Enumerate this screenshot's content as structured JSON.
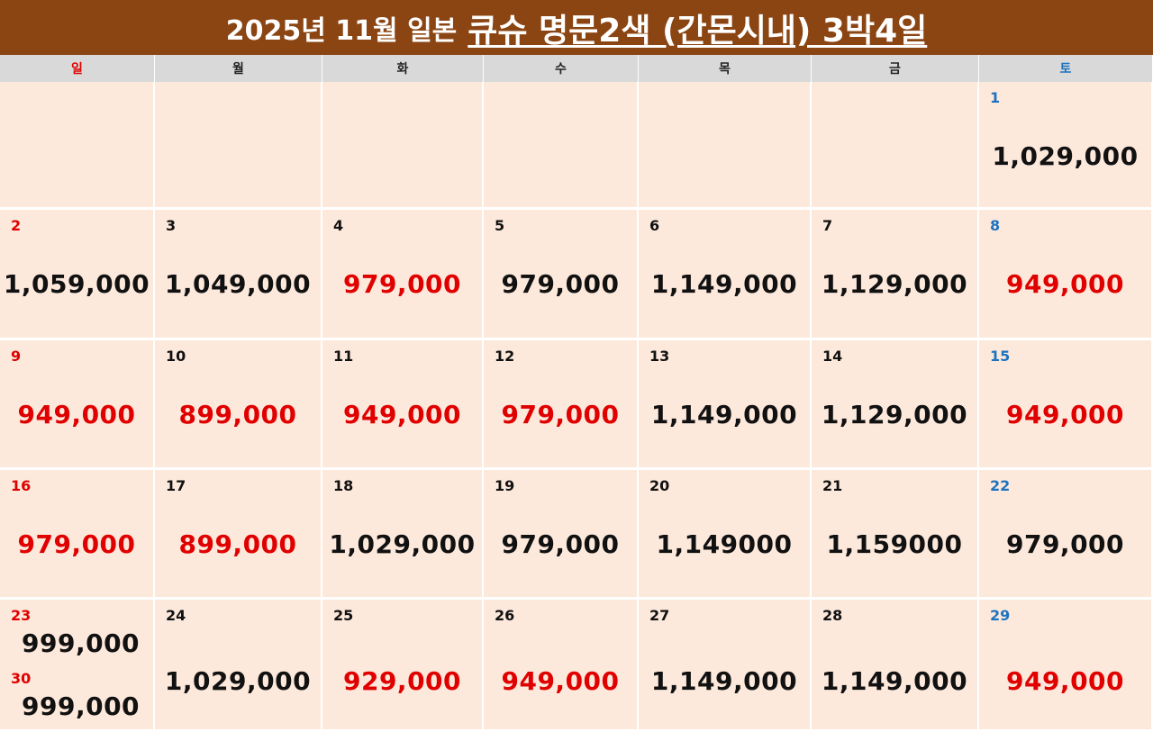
{
  "title": {
    "prefix": "2025년 11월 일본",
    "main": "큐슈 명문2색 (간몬시내) 3박4일"
  },
  "weekdays": [
    "일",
    "월",
    "화",
    "수",
    "목",
    "금",
    "토"
  ],
  "colors": {
    "header_bg": "#8b4513",
    "cell_bg": "#fde9dc",
    "red": "#e00000",
    "blue": "#1e73be"
  },
  "weeks": [
    [
      null,
      null,
      null,
      null,
      null,
      null,
      {
        "day": "1",
        "price": "1,029,000",
        "red": false
      }
    ],
    [
      {
        "day": "2",
        "price": "1,059,000",
        "red": false
      },
      {
        "day": "3",
        "price": "1,049,000",
        "red": false
      },
      {
        "day": "4",
        "price": "979,000",
        "red": true
      },
      {
        "day": "5",
        "price": "979,000",
        "red": false
      },
      {
        "day": "6",
        "price": "1,149,000",
        "red": false
      },
      {
        "day": "7",
        "price": "1,129,000",
        "red": false
      },
      {
        "day": "8",
        "price": "949,000",
        "red": true
      }
    ],
    [
      {
        "day": "9",
        "price": "949,000",
        "red": true
      },
      {
        "day": "10",
        "price": "899,000",
        "red": true
      },
      {
        "day": "11",
        "price": "949,000",
        "red": true
      },
      {
        "day": "12",
        "price": "979,000",
        "red": true
      },
      {
        "day": "13",
        "price": "1,149,000",
        "red": false
      },
      {
        "day": "14",
        "price": "1,129,000",
        "red": false
      },
      {
        "day": "15",
        "price": "949,000",
        "red": true
      }
    ],
    [
      {
        "day": "16",
        "price": "979,000",
        "red": true
      },
      {
        "day": "17",
        "price": "899,000",
        "red": true
      },
      {
        "day": "18",
        "price": "1,029,000",
        "red": false
      },
      {
        "day": "19",
        "price": "979,000",
        "red": false
      },
      {
        "day": "20",
        "price": "1,149000",
        "red": false
      },
      {
        "day": "21",
        "price": "1,159000",
        "red": false
      },
      {
        "day": "22",
        "price": "979,000",
        "red": false
      }
    ],
    [
      {
        "day": "23",
        "price": "999,000",
        "red": false,
        "day2": "30",
        "price2": "999,000"
      },
      {
        "day": "24",
        "price": "1,029,000",
        "red": false
      },
      {
        "day": "25",
        "price": "929,000",
        "red": true
      },
      {
        "day": "26",
        "price": "949,000",
        "red": true
      },
      {
        "day": "27",
        "price": "1,149,000",
        "red": false
      },
      {
        "day": "28",
        "price": "1,149,000",
        "red": false
      },
      {
        "day": "29",
        "price": "949,000",
        "red": true
      }
    ]
  ]
}
